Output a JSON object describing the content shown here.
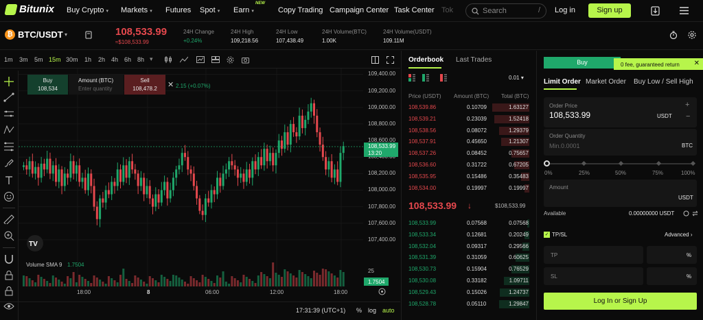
{
  "nav": {
    "logo": "Bitunix",
    "items": [
      {
        "label": "Buy Crypto",
        "dd": true
      },
      {
        "label": "Markets",
        "dd": true
      },
      {
        "label": "Futures",
        "dd": false
      },
      {
        "label": "Spot",
        "dd": true
      },
      {
        "label": "Earn",
        "dd": true,
        "badge": "NEW"
      },
      {
        "label": "Copy Trading",
        "dd": false
      },
      {
        "label": "Campaign Center",
        "dd": false
      },
      {
        "label": "Task Center",
        "dd": false
      },
      {
        "label": "Tok",
        "dd": false
      }
    ],
    "search_placeholder": "Search",
    "login": "Log in",
    "signup": "Sign up"
  },
  "ticker": {
    "pair": "BTC/USDT",
    "price": "108,533.99",
    "price_usd": "≈$108,533.99",
    "stats": [
      {
        "label": "24H Change",
        "value": "+0.24%"
      },
      {
        "label": "24H High",
        "value": "109,218.56"
      },
      {
        "label": "24H Low",
        "value": "107,438.49"
      },
      {
        "label": "24H Volume(BTC)",
        "value": "1.00K"
      },
      {
        "label": "24H Volume(USDT)",
        "value": "109.11M"
      }
    ]
  },
  "chart_toolbar": {
    "timeframes": [
      "1m",
      "3m",
      "5m",
      "15m",
      "30m",
      "1h",
      "2h",
      "4h",
      "6h",
      "8h"
    ],
    "active": "15m"
  },
  "quick_trade": {
    "buy_label": "Buy",
    "buy_price": "108,534",
    "amount_label": "Amount (BTC)",
    "amount_placeholder": "Enter quantity",
    "sell_label": "Sell",
    "sell_price": "108,478.2",
    "change": "2.15 (+0.07%)"
  },
  "chart_data": {
    "type": "candlestick",
    "y_ticks": [
      "109,400.00",
      "109,200.00",
      "109,000.00",
      "108,800.00",
      "108,600.00",
      "108,400.00",
      "108,200.00",
      "108,000.00",
      "107,800.00",
      "107,600.00",
      "107,400.00"
    ],
    "ylim": [
      107300,
      109470
    ],
    "x_ticks": [
      "18:00",
      "8",
      "06:00",
      "12:00",
      "18:00"
    ],
    "current_price": "108,533.99",
    "current_time": "13:20",
    "volume_label": "Volume SMA 9",
    "volume_value": "1.7504",
    "volume_axis": "25",
    "volume_badge": "1.7504"
  },
  "chart_footer": {
    "time": "17:31:39 (UTC+1)",
    "pct": "%",
    "log": "log",
    "auto": "auto"
  },
  "orderbook": {
    "tabs": [
      "Orderbook",
      "Last Trades"
    ],
    "precision": "0.01",
    "headers": [
      "Price (USDT)",
      "Amount (BTC)",
      "Total (BTC)"
    ],
    "asks": [
      {
        "price": "108,539.86",
        "amount": "0.10709",
        "total": "1.63127",
        "depth": 0.32
      },
      {
        "price": "108,539.21",
        "amount": "0.23039",
        "total": "1.52418",
        "depth": 0.3
      },
      {
        "price": "108,538.56",
        "amount": "0.08072",
        "total": "1.29379",
        "depth": 0.26
      },
      {
        "price": "108,537.91",
        "amount": "0.45650",
        "total": "1.21307",
        "depth": 0.24
      },
      {
        "price": "108,537.26",
        "amount": "0.08452",
        "total": "0.75657",
        "depth": 0.15
      },
      {
        "price": "108,536.60",
        "amount": "0.31722",
        "total": "0.67205",
        "depth": 0.13
      },
      {
        "price": "108,535.95",
        "amount": "0.15486",
        "total": "0.35483",
        "depth": 0.07
      },
      {
        "price": "108,534.00",
        "amount": "0.19997",
        "total": "0.19997",
        "depth": 0.04
      }
    ],
    "last_price": "108,533.99",
    "last_usd": "$108,533.99",
    "bids": [
      {
        "price": "108,533.99",
        "amount": "0.07568",
        "total": "0.07568",
        "depth": 0.02
      },
      {
        "price": "108,533.34",
        "amount": "0.12681",
        "total": "0.20249",
        "depth": 0.04
      },
      {
        "price": "108,532.04",
        "amount": "0.09317",
        "total": "0.29566",
        "depth": 0.06
      },
      {
        "price": "108,531.39",
        "amount": "0.31059",
        "total": "0.60625",
        "depth": 0.12
      },
      {
        "price": "108,530.73",
        "amount": "0.15904",
        "total": "0.76529",
        "depth": 0.15
      },
      {
        "price": "108,530.08",
        "amount": "0.33182",
        "total": "1.09711",
        "depth": 0.22
      },
      {
        "price": "108,529.43",
        "amount": "0.15026",
        "total": "1.24737",
        "depth": 0.25
      },
      {
        "price": "108,528.78",
        "amount": "0.05110",
        "total": "1.29847",
        "depth": 0.26
      }
    ]
  },
  "trade": {
    "buy_tab": "Buy",
    "toast": "0 fee, guaranteed return",
    "order_tabs": [
      "Limit Order",
      "Market Order",
      "Buy Low / Sell High"
    ],
    "price_label": "Order Price",
    "price_value": "108,533.99",
    "price_unit": "USDT",
    "qty_label": "Order Quantity",
    "qty_placeholder": "Min.0.0001",
    "qty_unit": "BTC",
    "slider": [
      "0%",
      "25%",
      "50%",
      "75%",
      "100%"
    ],
    "amount_label": "Amount",
    "amount_unit": "USDT",
    "available_label": "Available",
    "available_value": "0.00000000 USDT",
    "tpsl": "TP/SL",
    "advanced": "Advanced",
    "tp": "TP",
    "sl": "SL",
    "pct": "%",
    "submit": "Log In or Sign Up"
  },
  "colors": {
    "accent": "#b7f54b",
    "up": "#1fa86b",
    "down": "#e5484d"
  }
}
